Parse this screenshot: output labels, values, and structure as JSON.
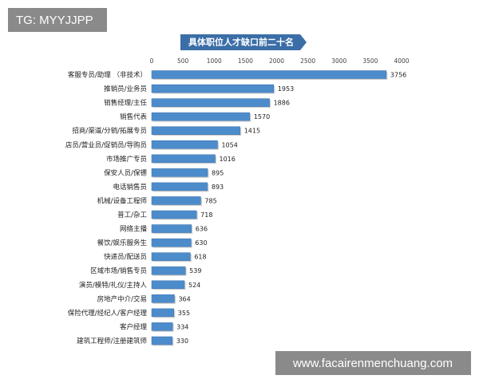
{
  "chart_data": {
    "type": "bar",
    "orientation": "horizontal",
    "title": "具体职位人才缺口前二十名",
    "categories": [
      "客服专员/助理 （非技术）",
      "推销员/业务员",
      "销售经理/主任",
      "销售代表",
      "招商/渠道/分销/拓展专员",
      "店员/营业员/促销员/导购员",
      "市场推广专员",
      "保安人员/保镖",
      "电话销售员",
      "机械/设备工程师",
      "普工/杂工",
      "网络主播",
      "餐饮/娱乐服务生",
      "快递员/配送员",
      "区域市场/销售专员",
      "演员/模特/礼仪/主持人",
      "房地产中介/交易",
      "保险代理/经纪人/客户经理",
      "客户经理",
      "建筑工程师/注册建筑师"
    ],
    "values": [
      3756,
      1953,
      1886,
      1570,
      1415,
      1054,
      1016,
      895,
      893,
      785,
      718,
      636,
      630,
      618,
      539,
      524,
      364,
      355,
      334,
      330
    ],
    "color": "#4d8ccb",
    "xlim": [
      0,
      4000
    ],
    "xticks": [
      0,
      500,
      1000,
      1500,
      2000,
      2500,
      3000,
      3500,
      4000
    ]
  },
  "watermarks": {
    "top_left": "TG: MYYJJPP",
    "bottom_right": "www.facairenmenchuang.com"
  }
}
